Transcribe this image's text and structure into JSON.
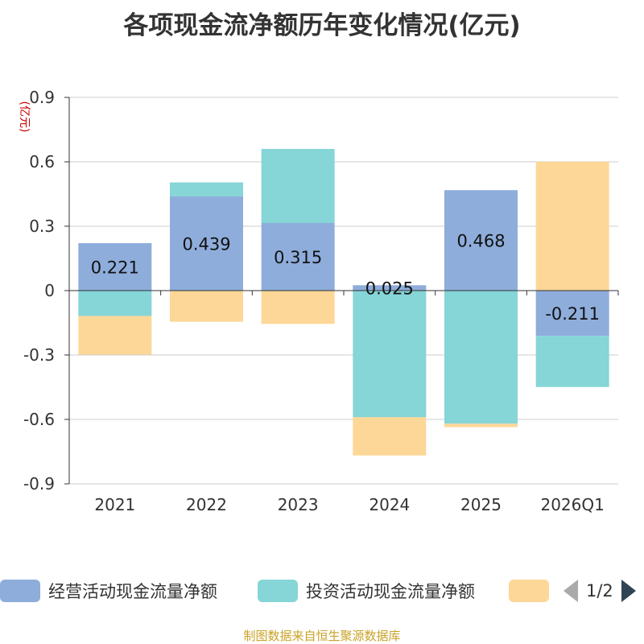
{
  "title": "各项现金流净额历年变化情况(亿元)",
  "footer": "制图数据来自恒生聚源数据库",
  "legend_page": "1/2",
  "colors": {
    "operating": "#8eaddb",
    "investing": "#86d5d7",
    "financing": "#fdd797",
    "grid": "#cccccc",
    "axis": "#333333",
    "unit": "#cc0000"
  },
  "chart_data": {
    "type": "bar",
    "stacked": true,
    "title": "各项现金流净额历年变化情况(亿元)",
    "ylabel": "(亿元)",
    "xlabel": "",
    "ylim": [
      -0.9,
      0.9
    ],
    "yticks": [
      0.9,
      0.6,
      0.3,
      0,
      -0.3,
      -0.6,
      -0.9
    ],
    "ytick_labels": [
      "0.9",
      "0.6",
      "0.3",
      "0",
      "-0.3",
      "-0.6",
      "-0.9"
    ],
    "categories": [
      "2021",
      "2022",
      "2023",
      "2024",
      "2025",
      "2026Q1"
    ],
    "series": [
      {
        "name": "经营活动现金流量净额",
        "key": "operating",
        "values": [
          0.221,
          0.439,
          0.315,
          0.025,
          0.468,
          -0.211
        ],
        "labels": [
          "0.221",
          "0.439",
          "0.315",
          "0.025",
          "0.468",
          "-0.211"
        ]
      },
      {
        "name": "投资活动现金流量净额",
        "key": "investing",
        "values": [
          -0.118,
          0.065,
          0.345,
          -0.59,
          -0.62,
          -0.238
        ]
      },
      {
        "name": "",
        "key": "financing",
        "values": [
          -0.18,
          -0.145,
          -0.155,
          -0.178,
          -0.016,
          0.6
        ]
      }
    ]
  }
}
